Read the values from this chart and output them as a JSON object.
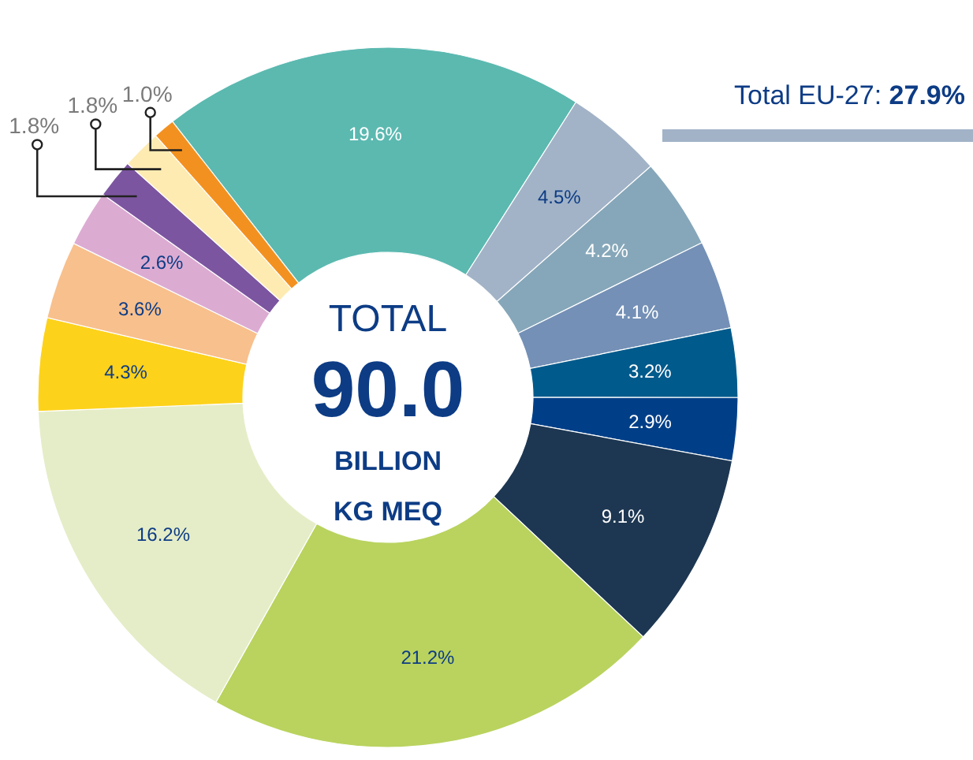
{
  "chart_data": {
    "type": "donut",
    "categories": [
      null,
      null,
      null,
      null,
      null,
      null,
      null,
      null,
      null,
      null,
      null,
      null,
      null,
      null,
      null
    ],
    "values": [
      19.6,
      4.5,
      4.2,
      4.1,
      3.2,
      2.9,
      9.1,
      21.2,
      16.2,
      4.3,
      3.6,
      2.6,
      1.8,
      1.8,
      1.0
    ],
    "colors": [
      "#5bb9b0",
      "#a2b3c7",
      "#86a7b9",
      "#7490b6",
      "#005a8c",
      "#003f87",
      "#1d3752",
      "#b9d35e",
      "#e5edc8",
      "#fdd21b",
      "#f8c08d",
      "#dcabd2",
      "#7c55a0",
      "#fdebb2",
      "#f39120"
    ],
    "value_labels": [
      "19.6%",
      "4.5%",
      "4.2%",
      "4.1%",
      "3.2%",
      "2.9%",
      "9.1%",
      "21.2%",
      "16.2%",
      "4.3%",
      "3.6%",
      "2.6%",
      "1.8%",
      "1.8%",
      "1.0%"
    ],
    "annotations": [
      "TOTAL",
      "90.0",
      "BILLION",
      "KG MEQ",
      "Total EU-27:",
      "27.9%"
    ]
  }
}
